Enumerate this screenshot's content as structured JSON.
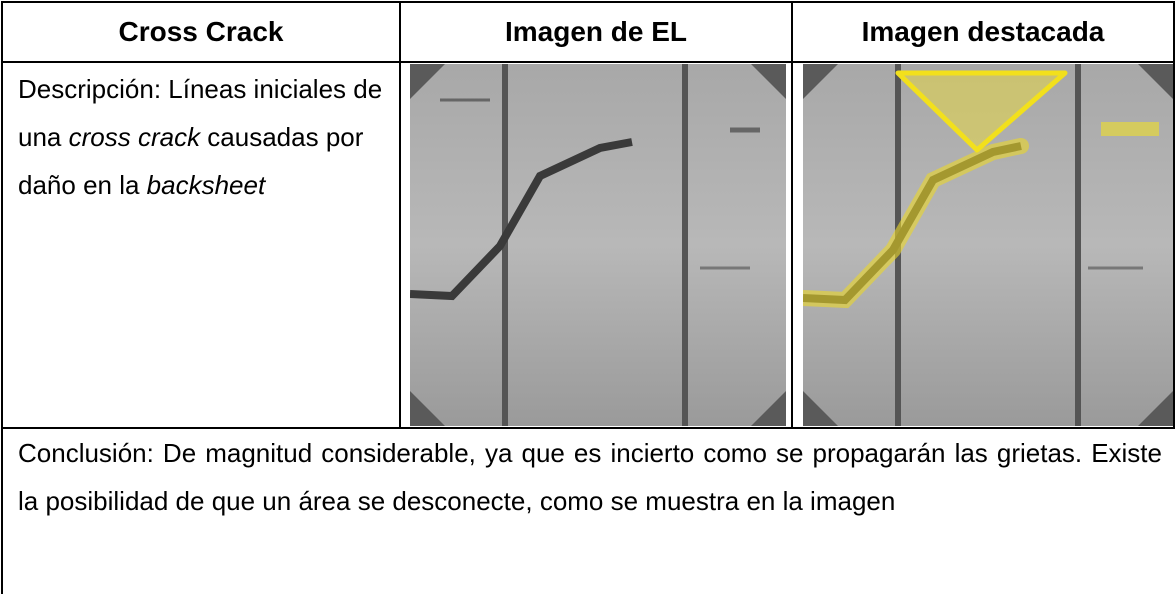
{
  "table": {
    "header": [
      "Cross Crack",
      "Imagen de EL",
      "Imagen destacada"
    ],
    "description": [
      {
        "text": "Descripción: Líneas iniciales de una "
      },
      {
        "text": "cross crack",
        "italic": true
      },
      {
        "text": " causadas por daño en la "
      },
      {
        "text": "backsheet",
        "italic": true
      }
    ],
    "conclusion": "Conclusión: De magnitud considerable, ya que es incierto como se propagarán las grietas. Existe la posibilidad de que un área se desconecte, como se muestra en la imagen"
  }
}
